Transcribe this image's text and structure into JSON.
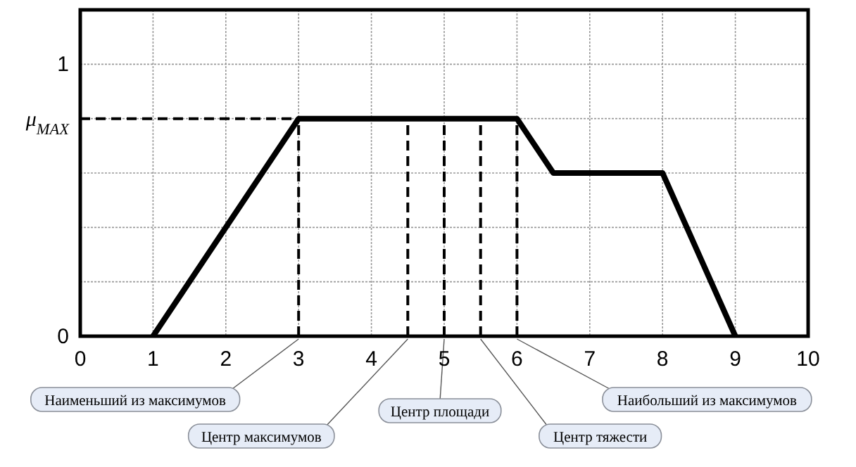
{
  "chart_data": {
    "type": "line",
    "x": [
      1,
      3,
      6,
      6.5,
      8,
      9
    ],
    "series": [
      {
        "color": "#000000",
        "values": [
          0,
          0.8,
          0.8,
          0.6,
          0.6,
          0
        ]
      }
    ],
    "xlim": [
      0,
      10
    ],
    "xticks": [
      0,
      1,
      2,
      3,
      4,
      5,
      6,
      7,
      8,
      9,
      10
    ],
    "ylim": [
      0,
      1.2
    ],
    "yticks": [
      0,
      {
        "value": 0.2,
        "label": null
      },
      {
        "value": 0.4,
        "label": null
      },
      {
        "value": 0.6,
        "label": null
      },
      {
        "value": 0.8,
        "label": "μ$_{MAX}$"
      },
      1
    ],
    "grid": true,
    "line_style": "solid",
    "ref_lines": [
      {
        "axis": "y",
        "value": 0.8,
        "label": null,
        "line_style": "dashed",
        "color": "#000000"
      },
      {
        "axis": "x",
        "value": 3,
        "label": "Наименьший из максимумов",
        "line_style": "dashed",
        "color": "#000000"
      },
      {
        "axis": "x",
        "value": 4.5,
        "label": "Центр максимумов",
        "line_style": "dashed",
        "color": "#000000"
      },
      {
        "axis": "x",
        "value": 5,
        "label": "Центр площади",
        "line_style": "dashed",
        "color": "#000000"
      },
      {
        "axis": "x",
        "value": 5.5,
        "label": "Центр тяжести",
        "line_style": "dashed",
        "color": "#000000"
      },
      {
        "axis": "x",
        "value": 6,
        "label": "Наибольший из максимумов",
        "line_style": "dashed",
        "color": "#000000"
      }
    ]
  }
}
